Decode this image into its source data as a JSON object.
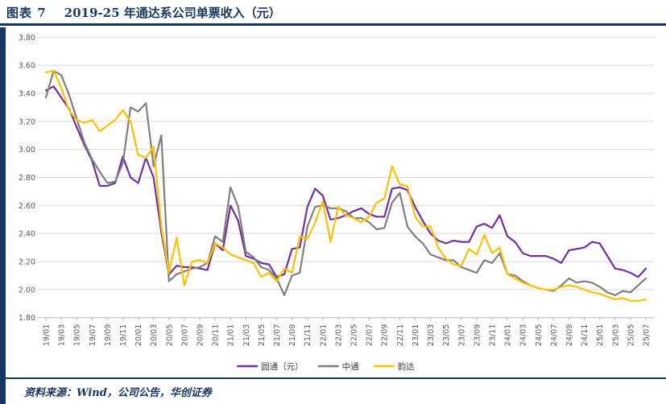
{
  "figure": {
    "caption_prefix": "图表 7",
    "caption_title": "2019-25 年通达系公司单票收入（元）",
    "source_label": "资料来源：Wind，公司公告，华创证券",
    "accent_color": "#17375E"
  },
  "chart_data": {
    "type": "line",
    "title": "2019-25 年通达系公司单票收入（元）",
    "xlabel": "",
    "ylabel": "",
    "ylim": [
      1.8,
      3.8
    ],
    "y_ticks": [
      1.8,
      2.0,
      2.2,
      2.4,
      2.6,
      2.8,
      3.0,
      3.2,
      3.4,
      3.6,
      3.8
    ],
    "y_tick_format": 2,
    "grid": true,
    "grid_color": "#D9D9D9",
    "axis_color": "#BFBFBF",
    "tick_text_color": "#595959",
    "legend_position": "bottom",
    "x_label_every": 2,
    "x": [
      "19/01",
      "19/02",
      "19/03",
      "19/04",
      "19/05",
      "19/06",
      "19/07",
      "19/08",
      "19/09",
      "19/10",
      "19/11",
      "19/12",
      "20/01",
      "20/02",
      "20/03",
      "20/04",
      "20/05",
      "20/06",
      "20/07",
      "20/08",
      "20/09",
      "20/10",
      "20/11",
      "20/12",
      "21/01",
      "21/02",
      "21/03",
      "21/04",
      "21/05",
      "21/06",
      "21/07",
      "21/08",
      "21/09",
      "21/10",
      "21/11",
      "21/12",
      "22/01",
      "22/02",
      "22/03",
      "22/04",
      "22/05",
      "22/06",
      "22/07",
      "22/08",
      "22/09",
      "22/10",
      "22/11",
      "22/12",
      "23/01",
      "23/02",
      "23/03",
      "23/04",
      "23/05",
      "23/06",
      "23/07",
      "23/08",
      "23/09",
      "23/10",
      "23/11",
      "23/12",
      "24/01",
      "24/02",
      "24/03",
      "24/04",
      "24/05",
      "24/06",
      "24/07",
      "24/08",
      "24/09",
      "24/10",
      "24/11",
      "24/12",
      "25/01",
      "25/02",
      "25/03",
      "25/04",
      "25/05",
      "25/06",
      "25/07"
    ],
    "series": [
      {
        "name": "圆通（元）",
        "color": "#7030A0",
        "values": [
          3.42,
          3.45,
          3.37,
          3.29,
          3.16,
          3.03,
          2.92,
          2.74,
          2.74,
          2.76,
          2.95,
          2.8,
          2.76,
          2.94,
          2.8,
          2.41,
          2.11,
          2.17,
          2.16,
          2.16,
          2.15,
          2.14,
          2.33,
          2.28,
          2.6,
          2.49,
          2.24,
          2.22,
          2.19,
          2.18,
          2.09,
          2.11,
          2.29,
          2.3,
          2.59,
          2.72,
          2.67,
          2.5,
          2.51,
          2.53,
          2.56,
          2.58,
          2.54,
          2.52,
          2.52,
          2.72,
          2.73,
          2.71,
          2.59,
          2.49,
          2.4,
          2.35,
          2.33,
          2.35,
          2.34,
          2.34,
          2.45,
          2.47,
          2.44,
          2.53,
          2.38,
          2.34,
          2.26,
          2.24,
          2.24,
          2.24,
          2.22,
          2.19,
          2.28,
          2.29,
          2.3,
          2.34,
          2.33,
          2.24,
          2.15,
          2.14,
          2.12,
          2.09,
          2.15
        ]
      },
      {
        "name": "中通",
        "color": "#7F7F7F",
        "values": [
          3.37,
          3.56,
          3.53,
          3.39,
          3.22,
          3.05,
          2.93,
          2.84,
          2.76,
          2.77,
          2.9,
          3.3,
          3.27,
          3.33,
          2.88,
          3.1,
          2.06,
          2.11,
          2.13,
          2.15,
          2.16,
          2.19,
          2.38,
          2.34,
          2.73,
          2.59,
          2.27,
          2.23,
          2.16,
          2.14,
          2.08,
          1.96,
          2.1,
          2.12,
          2.45,
          2.59,
          2.6,
          2.58,
          2.58,
          2.56,
          2.51,
          2.51,
          2.48,
          2.43,
          2.44,
          2.62,
          2.69,
          2.45,
          2.38,
          2.33,
          2.25,
          2.23,
          2.21,
          2.21,
          2.16,
          2.14,
          2.12,
          2.21,
          2.19,
          2.26,
          2.11,
          2.1,
          2.06,
          2.03,
          2.01,
          2.0,
          1.99,
          2.03,
          2.08,
          2.05,
          2.06,
          2.05,
          2.02,
          1.98,
          1.96,
          1.99,
          1.98,
          2.03,
          2.08
        ]
      },
      {
        "name": "韵达",
        "color": "#FFC000",
        "values": [
          3.55,
          3.56,
          3.44,
          3.28,
          3.21,
          3.19,
          3.21,
          3.13,
          3.17,
          3.21,
          3.28,
          3.2,
          2.96,
          2.94,
          3.02,
          2.45,
          2.12,
          2.37,
          2.03,
          2.2,
          2.21,
          2.19,
          2.33,
          2.3,
          2.25,
          2.23,
          2.21,
          2.19,
          2.09,
          2.12,
          2.06,
          2.15,
          2.12,
          2.38,
          2.36,
          2.48,
          2.63,
          2.34,
          2.59,
          2.53,
          2.51,
          2.48,
          2.52,
          2.62,
          2.65,
          2.88,
          2.75,
          2.74,
          2.52,
          2.45,
          2.45,
          2.3,
          2.22,
          2.18,
          2.17,
          2.29,
          2.25,
          2.39,
          2.26,
          2.3,
          2.11,
          2.08,
          2.05,
          2.03,
          2.01,
          2.0,
          2.0,
          2.02,
          2.03,
          2.02,
          2.0,
          1.98,
          1.97,
          1.95,
          1.93,
          1.94,
          1.92,
          1.92,
          1.93
        ]
      }
    ]
  }
}
